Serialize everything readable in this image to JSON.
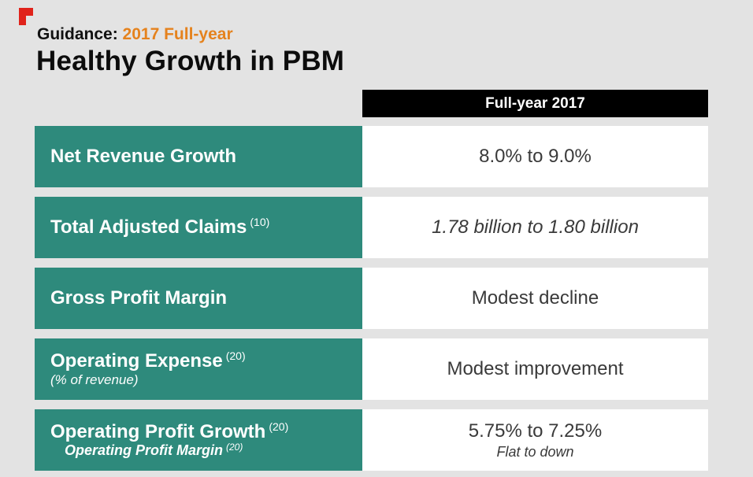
{
  "brand": {
    "logo_icon": "red-p-logo-icon",
    "logo_color": "#e0231b"
  },
  "header": {
    "subtitle_prefix": "Guidance:",
    "subtitle_accent": "2017 Full-year",
    "title": "Healthy Growth in PBM"
  },
  "table": {
    "column_header": "Full-year 2017",
    "rows": [
      {
        "label": "Net Revenue Growth",
        "note": "",
        "sublabel": "",
        "value": "8.0% to 9.0%",
        "value_sub": ""
      },
      {
        "label": "Total Adjusted Claims",
        "note": "(10)",
        "sublabel": "",
        "value": "1.78 billion to 1.80 billion",
        "value_sub": ""
      },
      {
        "label": "Gross Profit Margin",
        "note": "",
        "sublabel": "",
        "value": "Modest decline",
        "value_sub": ""
      },
      {
        "label": "Operating Expense",
        "note": "(20)",
        "sublabel": "(% of revenue)",
        "value": "Modest improvement",
        "value_sub": ""
      },
      {
        "label": "Operating Profit Growth",
        "note": "(20)",
        "sublabel": "Operating Profit Margin",
        "sublabel_note": "(20)",
        "value": "5.75% to 7.25%",
        "value_sub": "Flat to down"
      }
    ]
  },
  "colors": {
    "label_bg": "#2e8a7c",
    "accent": "#e5821d",
    "header_bg": "#000000"
  }
}
